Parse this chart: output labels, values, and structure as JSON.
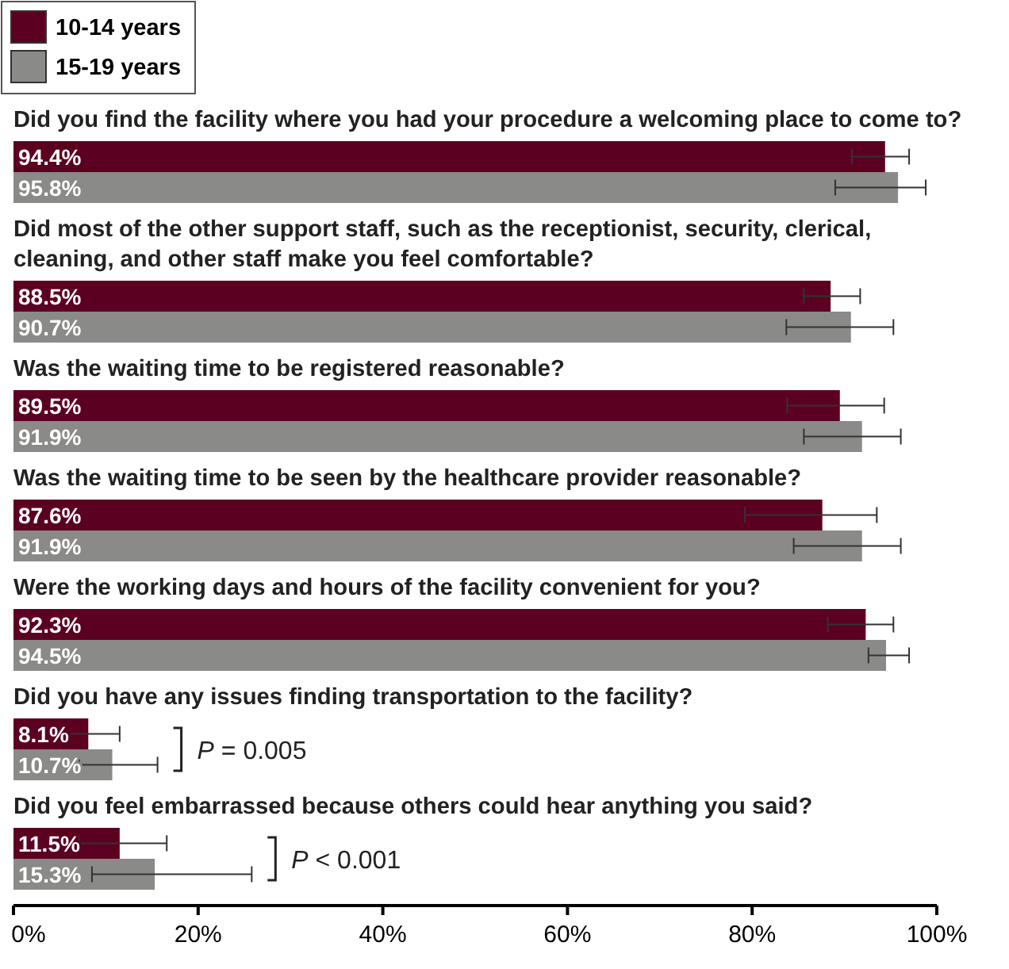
{
  "chart_data": {
    "type": "bar",
    "orientation": "horizontal",
    "categories": [
      "Did you find the facility where you had your procedure a welcoming place to come to?",
      "Did most of the other support staff, such as the receptionist, security, clerical, cleaning, and other staff make you feel comfortable?",
      "Was the waiting time to be registered reasonable?",
      "Was the waiting time to be seen by the healthcare provider reasonable?",
      "Were the working days and hours of the facility convenient for you?",
      "Did you have any issues finding transportation to the facility?",
      "Did you feel embarrassed because others could hear anything you said?"
    ],
    "series": [
      {
        "name": "10-14 years",
        "color": "#5c0022",
        "values": [
          94.4,
          88.5,
          89.5,
          87.6,
          92.3,
          8.1,
          11.5
        ],
        "value_labels": [
          "94.4%",
          "88.5%",
          "89.5%",
          "87.6%",
          "92.3%",
          "8.1%",
          "11.5%"
        ],
        "errors": [
          [
            90.8,
            97.0
          ],
          [
            85.6,
            91.7
          ],
          [
            83.8,
            94.3
          ],
          [
            79.2,
            93.5
          ],
          [
            88.2,
            95.3
          ],
          [
            5.0,
            11.5
          ],
          [
            7.1,
            16.6
          ]
        ]
      },
      {
        "name": "15-19 years",
        "color": "#8a8a88",
        "values": [
          95.8,
          90.7,
          91.9,
          91.9,
          94.5,
          10.7,
          15.3
        ],
        "value_labels": [
          "95.8%",
          "90.7%",
          "91.9%",
          "91.9%",
          "94.5%",
          "10.7%",
          "15.3%"
        ],
        "errors": [
          [
            89.0,
            98.8
          ],
          [
            83.7,
            95.3
          ],
          [
            85.6,
            96.1
          ],
          [
            84.5,
            96.1
          ],
          [
            92.6,
            97.0
          ],
          [
            7.1,
            15.6
          ],
          [
            8.5,
            25.8
          ]
        ]
      }
    ],
    "xlim": [
      0,
      100
    ],
    "xticks": [
      {
        "value": 0,
        "label": "0%"
      },
      {
        "value": 20,
        "label": "20%"
      },
      {
        "value": 40,
        "label": "40%"
      },
      {
        "value": 60,
        "label": "60%"
      },
      {
        "value": 80,
        "label": "80%"
      },
      {
        "value": 100,
        "label": "100%"
      }
    ],
    "annotations": [
      "P = 0.005",
      "P < 0.001"
    ],
    "legend": "top left",
    "grid": false
  }
}
